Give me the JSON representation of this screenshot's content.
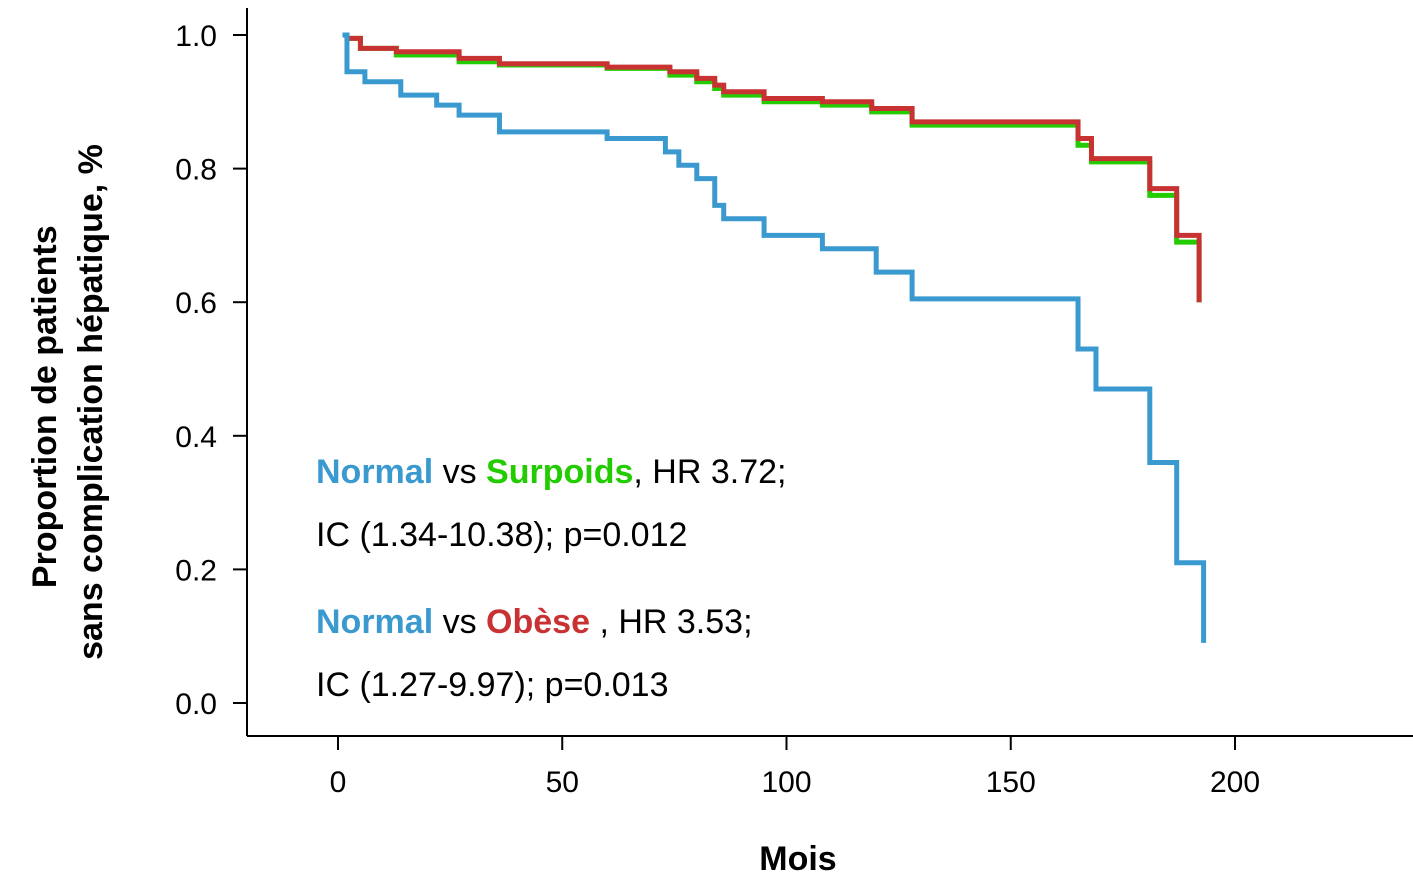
{
  "chart_data": {
    "type": "line",
    "step": "post",
    "xlabel": "Mois",
    "ylabel_lines": [
      "Proportion de patients",
      "sans complication hépatique, %"
    ],
    "xlim": [
      -20,
      240
    ],
    "ylim": [
      -0.05,
      1.04
    ],
    "xticks": [
      0,
      50,
      100,
      150,
      200
    ],
    "yticks": [
      0.0,
      0.2,
      0.4,
      0.6,
      0.8,
      1.0
    ],
    "xtick_labels": [
      "0",
      "50",
      "100",
      "150",
      "200"
    ],
    "ytick_labels": [
      "0.0",
      "0.2",
      "0.4",
      "0.6",
      "0.8",
      "1.0"
    ],
    "grid": false,
    "legend": "none",
    "series": [
      {
        "name": "Surpoids",
        "color": "#22cc00",
        "x": [
          1,
          2,
          5,
          13,
          27,
          36,
          60,
          74,
          80,
          84,
          86,
          95,
          108,
          119,
          128,
          165,
          168,
          181,
          187,
          192
        ],
        "y": [
          1.0,
          0.995,
          0.98,
          0.97,
          0.96,
          0.955,
          0.95,
          0.94,
          0.93,
          0.92,
          0.91,
          0.9,
          0.895,
          0.885,
          0.865,
          0.835,
          0.81,
          0.76,
          0.69,
          0.6
        ]
      },
      {
        "name": "Obèse",
        "color": "#c83232",
        "x": [
          1,
          2,
          5,
          13,
          27,
          36,
          60,
          74,
          80,
          84,
          86,
          95,
          108,
          119,
          128,
          165,
          168,
          181,
          187,
          192
        ],
        "y": [
          1.0,
          0.995,
          0.98,
          0.975,
          0.965,
          0.957,
          0.952,
          0.945,
          0.935,
          0.925,
          0.915,
          0.905,
          0.9,
          0.89,
          0.87,
          0.845,
          0.815,
          0.77,
          0.7,
          0.6
        ]
      },
      {
        "name": "Normal",
        "color": "#3a9ad0",
        "x": [
          1,
          2,
          6,
          14,
          22,
          27,
          36,
          60,
          73,
          76,
          80,
          84,
          86,
          95,
          108,
          120,
          128,
          165,
          169,
          181,
          187,
          193
        ],
        "y": [
          1.0,
          0.945,
          0.93,
          0.91,
          0.895,
          0.88,
          0.855,
          0.845,
          0.825,
          0.805,
          0.785,
          0.745,
          0.725,
          0.7,
          0.68,
          0.645,
          0.605,
          0.53,
          0.47,
          0.36,
          0.21,
          0.09
        ]
      }
    ],
    "annotations": [
      {
        "lines": [
          [
            {
              "text": "Normal",
              "color": "#3a9ad0",
              "bold": true
            },
            {
              "text": " vs ",
              "color": "#000000",
              "bold": false
            },
            {
              "text": "Surpoids",
              "color": "#22cc00",
              "bold": true
            },
            {
              "text": ", HR 3.72;",
              "color": "#000000",
              "bold": false
            }
          ],
          [
            {
              "text": "IC (1.34-10.38); p=0.012",
              "color": "#000000",
              "bold": false
            }
          ]
        ]
      },
      {
        "lines": [
          [
            {
              "text": "Normal",
              "color": "#3a9ad0",
              "bold": true
            },
            {
              "text": " vs ",
              "color": "#000000",
              "bold": false
            },
            {
              "text": "Obèse",
              "color": "#c83232",
              "bold": true
            },
            {
              "text": " , HR 3.53;",
              "color": "#000000",
              "bold": false
            }
          ],
          [
            {
              "text": "IC (1.27-9.97); p=0.013",
              "color": "#000000",
              "bold": false
            }
          ]
        ]
      }
    ]
  }
}
